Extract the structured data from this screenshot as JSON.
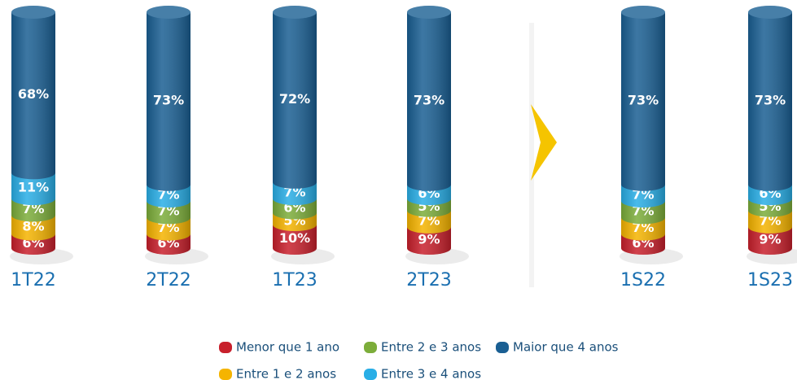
{
  "chart_data": {
    "type": "bar",
    "stacked": true,
    "categories": [
      "1T22",
      "2T22",
      "1T23",
      "2T23",
      "1S22",
      "1S23"
    ],
    "series": [
      {
        "name": "Menor que 1 ano",
        "color": "#c8202c",
        "values": [
          6,
          6,
          10,
          9,
          6,
          9
        ],
        "value_labels": [
          "6%",
          "6%",
          "10%",
          "9%",
          "6%",
          "9%"
        ]
      },
      {
        "name": "Entre 1 e 2 anos",
        "color": "#f5b400",
        "values": [
          8,
          7,
          5,
          7,
          7,
          7
        ],
        "value_labels": [
          "8%",
          "7%",
          "5%",
          "7%",
          "7%",
          "7%"
        ]
      },
      {
        "name": "Entre 2 e 3 anos",
        "color": "#7cad3a",
        "values": [
          7,
          7,
          6,
          5,
          7,
          5
        ],
        "value_labels": [
          "7%",
          "7%",
          "6%",
          "5%",
          "7%",
          "5%"
        ]
      },
      {
        "name": "Entre 3 e 4 anos",
        "color": "#29aee6",
        "values": [
          11,
          7,
          7,
          6,
          7,
          6
        ],
        "value_labels": [
          "11%",
          "7%",
          "7%",
          "6%",
          "7%",
          "6%"
        ]
      },
      {
        "name": "Maior que 4 anos",
        "color": "#1a5f93",
        "values": [
          68,
          73,
          72,
          73,
          73,
          73
        ],
        "value_labels": [
          "68%",
          "73%",
          "72%",
          "73%",
          "73%",
          "73%"
        ]
      }
    ]
  }
}
